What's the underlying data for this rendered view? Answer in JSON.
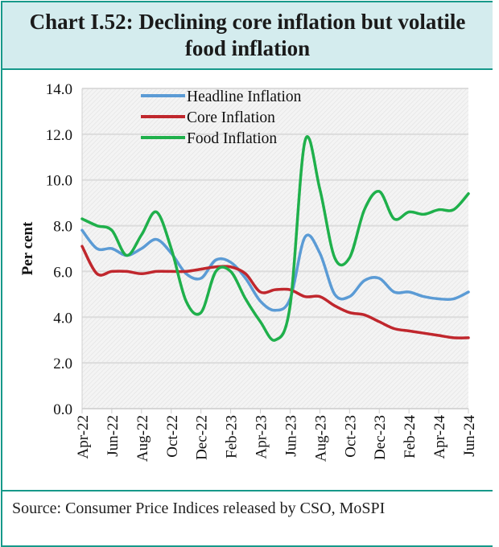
{
  "title": "Chart I.52: Declining core inflation but volatile food inflation",
  "source": "Source: Consumer Price Indices released by CSO, MoSPI",
  "chart_data": {
    "type": "line",
    "title": "Chart I.52: Declining core inflation but volatile food inflation",
    "xlabel": "",
    "ylabel": "Per cent",
    "ylim": [
      0,
      14
    ],
    "yticks": [
      "0.0",
      "2.0",
      "4.0",
      "6.0",
      "8.0",
      "10.0",
      "12.0",
      "14.0"
    ],
    "grid": true,
    "legend": "top-left",
    "smooth": true,
    "x": [
      "Apr-22",
      "May-22",
      "Jun-22",
      "Jul-22",
      "Aug-22",
      "Sep-22",
      "Oct-22",
      "Nov-22",
      "Dec-22",
      "Jan-23",
      "Feb-23",
      "Mar-23",
      "Apr-23",
      "May-23",
      "Jun-23",
      "Jul-23",
      "Aug-23",
      "Sep-23",
      "Oct-23",
      "Nov-23",
      "Dec-23",
      "Jan-24",
      "Feb-24",
      "Mar-24",
      "Apr-24",
      "May-24",
      "Jun-24"
    ],
    "xtick_labels": [
      "Apr-22",
      "Jun-22",
      "Aug-22",
      "Oct-22",
      "Dec-22",
      "Feb-23",
      "Apr-23",
      "Jun-23",
      "Aug-23",
      "Oct-23",
      "Dec-23",
      "Feb-24",
      "Apr-24",
      "Jun-24"
    ],
    "series": [
      {
        "name": "Headline Inflation",
        "color": "#5b9bd5",
        "values": [
          7.8,
          7.0,
          7.0,
          6.7,
          7.0,
          7.4,
          6.8,
          5.9,
          5.7,
          6.5,
          6.4,
          5.7,
          4.7,
          4.3,
          4.8,
          7.5,
          6.8,
          5.0,
          4.9,
          5.6,
          5.7,
          5.1,
          5.1,
          4.9,
          4.8,
          4.8,
          5.1
        ]
      },
      {
        "name": "Core Inflation",
        "color": "#c0272d",
        "values": [
          7.1,
          5.9,
          6.0,
          6.0,
          5.9,
          6.0,
          6.0,
          6.0,
          6.1,
          6.2,
          6.2,
          5.9,
          5.1,
          5.2,
          5.2,
          4.9,
          4.9,
          4.5,
          4.2,
          4.1,
          3.8,
          3.5,
          3.4,
          3.3,
          3.2,
          3.1,
          3.1
        ]
      },
      {
        "name": "Food Inflation",
        "color": "#1fb04b",
        "values": [
          8.3,
          8.0,
          7.8,
          6.7,
          7.6,
          8.6,
          7.0,
          4.7,
          4.2,
          6.0,
          6.0,
          4.8,
          3.8,
          3.0,
          4.5,
          11.7,
          9.6,
          6.6,
          6.6,
          8.7,
          9.5,
          8.3,
          8.6,
          8.5,
          8.7,
          8.7,
          9.4
        ]
      }
    ]
  }
}
